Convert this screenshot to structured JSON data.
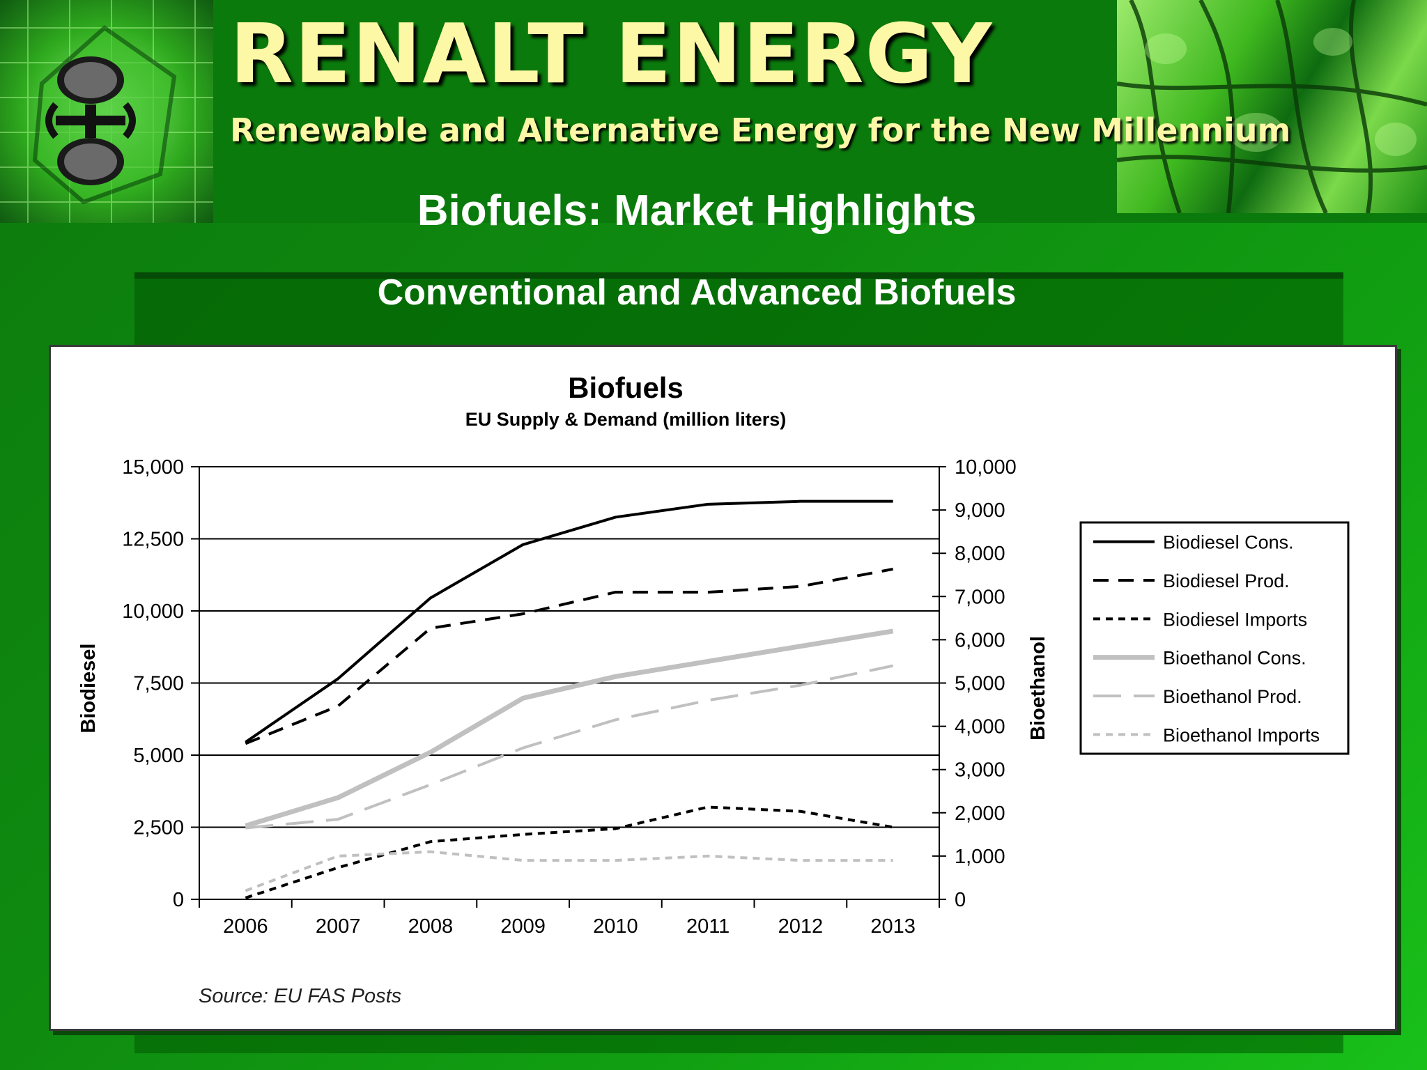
{
  "header": {
    "brand_title": "RENALT ENERGY",
    "brand_tagline": "Renewable and Alternative Energy for the New Millennium",
    "slide_title": "Biofuels:  Market Highlights",
    "slide_subtitle": "Conventional and Advanced Biofuels"
  },
  "colors": {
    "background": "#0f8a10",
    "brand_text": "#fdf8a6",
    "series_dark": "#000000",
    "series_light": "#c0c0c0"
  },
  "icons": {
    "logo_left": "recycle-emblem-icon",
    "logo_right": "plant-cell-texture-image"
  },
  "chart_data": {
    "type": "line",
    "title": "Biofuels",
    "subtitle": "EU Supply & Demand (million liters)",
    "ylabel_left": "Biodiesel",
    "ylabel_right": "Bioethanol",
    "source": "Source: EU FAS  Posts",
    "categories": [
      "2006",
      "2007",
      "2008",
      "2009",
      "2010",
      "2011",
      "2012",
      "2013"
    ],
    "y_left": {
      "min": 0,
      "max": 15000,
      "ticks": [
        "0",
        "2,500",
        "5,000",
        "7,500",
        "10,000",
        "12,500",
        "15,000"
      ]
    },
    "y_right": {
      "min": 0,
      "max": 10000,
      "ticks": [
        "0",
        "1,000",
        "2,000",
        "3,000",
        "4,000",
        "5,000",
        "6,000",
        "7,000",
        "8,000",
        "9,000",
        "10,000"
      ]
    },
    "grid": "horizontal",
    "legend_position": "right",
    "series": [
      {
        "name": "Biodiesel Cons.",
        "axis": "left",
        "style": "solid",
        "color": "#000000",
        "values": [
          5450,
          7650,
          10450,
          12300,
          13250,
          13700,
          13800,
          13800
        ]
      },
      {
        "name": "Biodiesel Prod.",
        "axis": "left",
        "style": "dash",
        "color": "#000000",
        "values": [
          5400,
          6700,
          9400,
          9900,
          10650,
          10650,
          10850,
          11450
        ]
      },
      {
        "name": "Biodiesel Imports",
        "axis": "left",
        "style": "dot",
        "color": "#000000",
        "values": [
          50,
          1100,
          2000,
          2250,
          2450,
          3200,
          3050,
          2500
        ]
      },
      {
        "name": "Bioethanol Cons.",
        "axis": "right",
        "style": "solid",
        "color": "#c0c0c0",
        "values": [
          1700,
          2350,
          3400,
          4650,
          5150,
          5500,
          5850,
          6200
        ]
      },
      {
        "name": "Bioethanol Prod.",
        "axis": "right",
        "style": "longdash",
        "color": "#c0c0c0",
        "values": [
          1650,
          1850,
          2650,
          3500,
          4150,
          4600,
          4950,
          5400
        ]
      },
      {
        "name": "Bioethanol Imports",
        "axis": "right",
        "style": "dot",
        "color": "#c0c0c0",
        "values": [
          200,
          1000,
          1100,
          900,
          900,
          1000,
          900,
          900
        ]
      }
    ]
  }
}
